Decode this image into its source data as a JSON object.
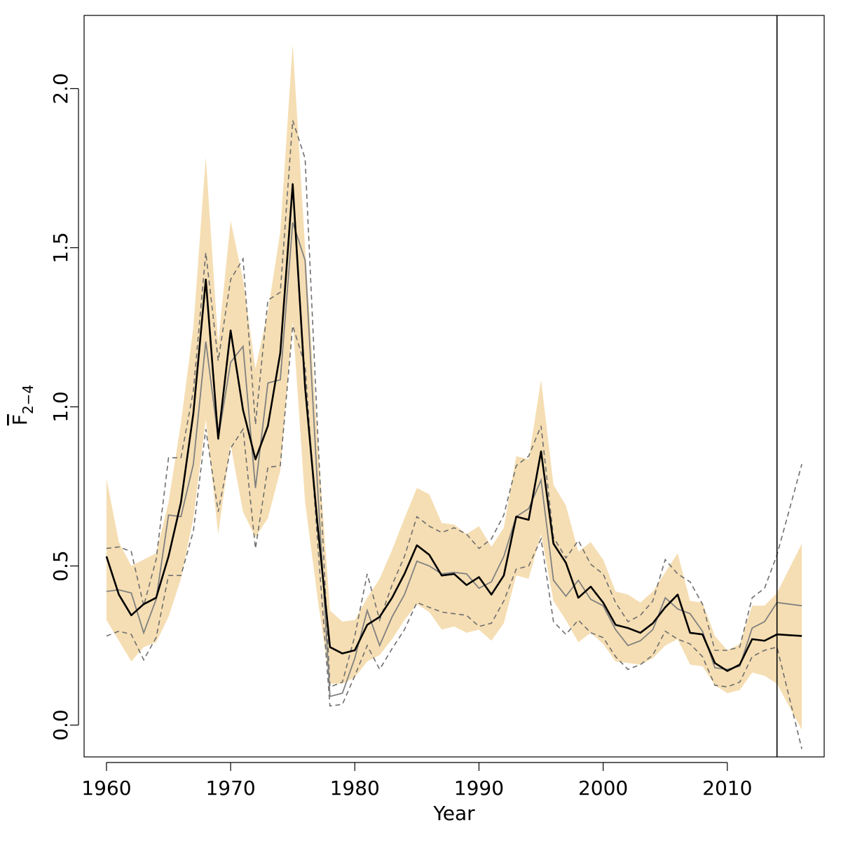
{
  "chart_data": {
    "type": "line",
    "xlabel": "Year",
    "ylabel": {
      "main": "F",
      "subscript": "2−4"
    },
    "xlim": [
      1958.2,
      2017.8
    ],
    "ylim": [
      -0.1,
      2.23
    ],
    "x_ticks": [
      1960,
      1970,
      1980,
      1990,
      2000,
      2010
    ],
    "y_ticks": [
      0.0,
      0.5,
      1.0,
      1.5,
      2.0
    ],
    "y_tick_labels": [
      "0.0",
      "0.5",
      "1.0",
      "1.5",
      "2.0"
    ],
    "vertical_line_x": 2014,
    "grid": false,
    "colors": {
      "band": "#f5deb3",
      "estimate": "#000000",
      "comparison": "#808080",
      "comparison_bounds": "#6e6e6e",
      "frame": "#000000"
    },
    "years": [
      1960,
      1961,
      1962,
      1963,
      1964,
      1965,
      1966,
      1967,
      1968,
      1969,
      1970,
      1971,
      1972,
      1973,
      1974,
      1975,
      1976,
      1977,
      1978,
      1979,
      1980,
      1981,
      1982,
      1983,
      1984,
      1985,
      1986,
      1987,
      1988,
      1989,
      1990,
      1991,
      1992,
      1993,
      1994,
      1995,
      1996,
      1997,
      1998,
      1999,
      2000,
      2001,
      2002,
      2003,
      2004,
      2005,
      2006,
      2007,
      2008,
      2009,
      2010,
      2011,
      2012,
      2013,
      2014,
      2016
    ],
    "estimate": [
      0.53,
      0.41,
      0.345,
      0.38,
      0.4,
      0.53,
      0.7,
      0.98,
      1.4,
      0.9,
      1.24,
      0.99,
      0.835,
      0.94,
      1.17,
      1.7,
      1.06,
      0.63,
      0.245,
      0.225,
      0.235,
      0.315,
      0.34,
      0.4,
      0.475,
      0.565,
      0.535,
      0.47,
      0.475,
      0.44,
      0.465,
      0.41,
      0.47,
      0.655,
      0.645,
      0.86,
      0.57,
      0.51,
      0.4,
      0.435,
      0.385,
      0.315,
      0.305,
      0.29,
      0.32,
      0.37,
      0.41,
      0.29,
      0.285,
      0.195,
      0.17,
      0.19,
      0.27,
      0.265,
      0.285,
      0.28
    ],
    "band_upper": [
      0.775,
      0.575,
      0.5,
      0.52,
      0.54,
      0.7,
      0.95,
      1.25,
      1.785,
      1.2,
      1.585,
      1.4,
      1.12,
      1.3,
      1.55,
      2.14,
      1.5,
      0.9,
      0.36,
      0.325,
      0.33,
      0.4,
      0.46,
      0.55,
      0.65,
      0.745,
      0.725,
      0.635,
      0.63,
      0.6,
      0.625,
      0.56,
      0.62,
      0.845,
      0.835,
      1.085,
      0.755,
      0.69,
      0.545,
      0.575,
      0.52,
      0.42,
      0.41,
      0.385,
      0.42,
      0.48,
      0.54,
      0.39,
      0.385,
      0.28,
      0.235,
      0.255,
      0.375,
      0.375,
      0.415,
      0.57
    ],
    "band_lower": [
      0.33,
      0.265,
      0.2,
      0.245,
      0.26,
      0.34,
      0.46,
      0.65,
      0.96,
      0.6,
      0.88,
      0.67,
      0.59,
      0.65,
      0.8,
      1.27,
      0.7,
      0.4,
      0.13,
      0.13,
      0.15,
      0.2,
      0.22,
      0.27,
      0.33,
      0.38,
      0.355,
      0.3,
      0.31,
      0.29,
      0.3,
      0.265,
      0.32,
      0.47,
      0.46,
      0.6,
      0.39,
      0.33,
      0.26,
      0.29,
      0.255,
      0.2,
      0.195,
      0.19,
      0.21,
      0.25,
      0.27,
      0.19,
      0.185,
      0.125,
      0.1,
      0.11,
      0.165,
      0.155,
      0.13,
      -0.015
    ],
    "comparison": [
      0.42,
      0.425,
      0.415,
      0.29,
      0.395,
      0.66,
      0.655,
      0.82,
      1.205,
      0.9,
      1.14,
      1.19,
      0.745,
      1.075,
      1.085,
      1.58,
      1.46,
      0.75,
      0.09,
      0.1,
      0.21,
      0.36,
      0.25,
      0.34,
      0.41,
      0.515,
      0.5,
      0.475,
      0.48,
      0.475,
      0.43,
      0.45,
      0.53,
      0.655,
      0.68,
      0.77,
      0.455,
      0.405,
      0.455,
      0.395,
      0.375,
      0.3,
      0.25,
      0.265,
      0.3,
      0.4,
      0.365,
      0.35,
      0.295,
      0.18,
      0.175,
      0.185,
      0.305,
      0.325,
      0.385,
      0.375
    ],
    "comparison_upper": [
      0.555,
      0.56,
      0.545,
      0.375,
      0.52,
      0.84,
      0.84,
      1.05,
      1.485,
      1.145,
      1.4,
      1.465,
      0.945,
      1.335,
      1.36,
      1.9,
      1.78,
      0.93,
      0.12,
      0.135,
      0.28,
      0.475,
      0.33,
      0.44,
      0.53,
      0.655,
      0.625,
      0.605,
      0.62,
      0.6,
      0.555,
      0.585,
      0.66,
      0.815,
      0.845,
      0.94,
      0.59,
      0.525,
      0.58,
      0.505,
      0.475,
      0.385,
      0.325,
      0.345,
      0.39,
      0.52,
      0.475,
      0.45,
      0.38,
      0.235,
      0.235,
      0.245,
      0.4,
      0.43,
      0.535,
      0.82
    ],
    "comparison_lower": [
      0.28,
      0.295,
      0.285,
      0.205,
      0.275,
      0.47,
      0.47,
      0.61,
      0.93,
      0.67,
      0.87,
      0.93,
      0.555,
      0.81,
      0.815,
      1.255,
      1.13,
      0.575,
      0.06,
      0.065,
      0.155,
      0.25,
      0.175,
      0.24,
      0.3,
      0.385,
      0.37,
      0.355,
      0.35,
      0.345,
      0.31,
      0.32,
      0.39,
      0.49,
      0.5,
      0.585,
      0.325,
      0.285,
      0.33,
      0.29,
      0.275,
      0.215,
      0.175,
      0.19,
      0.22,
      0.295,
      0.27,
      0.255,
      0.215,
      0.125,
      0.12,
      0.135,
      0.215,
      0.235,
      0.245,
      -0.075
    ]
  }
}
